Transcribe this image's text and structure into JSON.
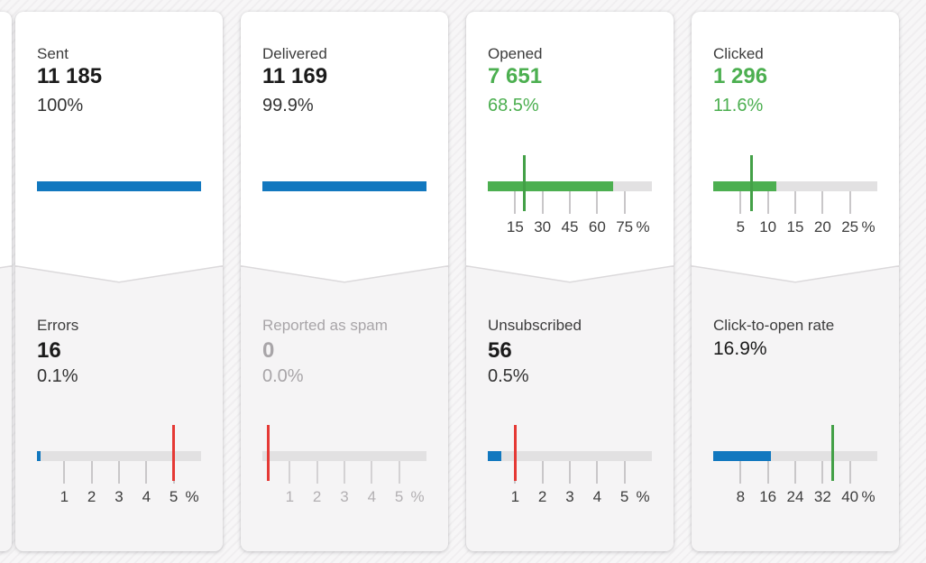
{
  "colors": {
    "accent_blue": "#1278bf",
    "accent_green": "#4caf50",
    "marker_green": "#43a047",
    "marker_red": "#e53935",
    "track_gray": "#e2e1e2",
    "card_bottom_gray": "#f5f4f5"
  },
  "cards": [
    {
      "top": {
        "label": "Sent",
        "value": "11 185",
        "percent": "100%",
        "value_style": "dark",
        "bar": {
          "fill": 100,
          "max": 100,
          "fill_color": "#1278bf",
          "ticks": [],
          "unit": ""
        }
      },
      "bottom": {
        "label": "Errors",
        "value": "16",
        "percent": "0.1%",
        "style": "normal",
        "bar": {
          "fill": 0.13,
          "max": 6,
          "fill_color": "#1278bf",
          "ticks": [
            1,
            2,
            3,
            4,
            5
          ],
          "unit": "%",
          "marker": {
            "value": 5,
            "color": "#e53935",
            "meaning": "threshold"
          }
        }
      }
    },
    {
      "top": {
        "label": "Delivered",
        "value": "11 169",
        "percent": "99.9%",
        "value_style": "dark",
        "bar": {
          "fill": 100,
          "max": 100,
          "fill_color": "#1278bf",
          "ticks": [],
          "unit": ""
        }
      },
      "bottom": {
        "label": "Reported as spam",
        "value": "0",
        "percent": "0.0%",
        "style": "muted",
        "bar": {
          "fill": 0,
          "max": 6,
          "fill_color": "#1278bf",
          "ticks": [
            1,
            2,
            3,
            4,
            5
          ],
          "unit": "%",
          "marker": {
            "value": 0.2,
            "color": "#e53935",
            "meaning": "threshold"
          }
        }
      }
    },
    {
      "top": {
        "label": "Opened",
        "value": "7 651",
        "percent": "68.5%",
        "value_style": "green",
        "bar": {
          "fill": 68.5,
          "max": 90,
          "fill_color": "#4caf50",
          "ticks": [
            15,
            30,
            45,
            60,
            75
          ],
          "unit": "%",
          "marker": {
            "value": 20,
            "color": "#43a047",
            "meaning": "benchmark"
          }
        }
      },
      "bottom": {
        "label": "Unsubscribed",
        "value": "56",
        "percent": "0.5%",
        "style": "normal",
        "bar": {
          "fill": 0.5,
          "max": 6,
          "fill_color": "#1278bf",
          "ticks": [
            1,
            2,
            3,
            4,
            5
          ],
          "unit": "%",
          "marker": {
            "value": 1,
            "color": "#e53935",
            "meaning": "threshold"
          }
        }
      }
    },
    {
      "top": {
        "label": "Clicked",
        "value": "1 296",
        "percent": "11.6%",
        "value_style": "green",
        "bar": {
          "fill": 11.6,
          "max": 30,
          "fill_color": "#4caf50",
          "ticks": [
            5,
            10,
            15,
            20,
            25
          ],
          "unit": "%",
          "marker": {
            "value": 7,
            "color": "#43a047",
            "meaning": "benchmark"
          }
        }
      },
      "bottom": {
        "label": "Click-to-open rate",
        "value": "16.9%",
        "percent": "",
        "style": "rate",
        "bar": {
          "fill": 16.9,
          "max": 48,
          "fill_color": "#1278bf",
          "ticks": [
            8,
            16,
            24,
            32,
            40
          ],
          "unit": "%",
          "marker": {
            "value": 35,
            "color": "#43a047",
            "meaning": "benchmark"
          }
        }
      }
    }
  ]
}
